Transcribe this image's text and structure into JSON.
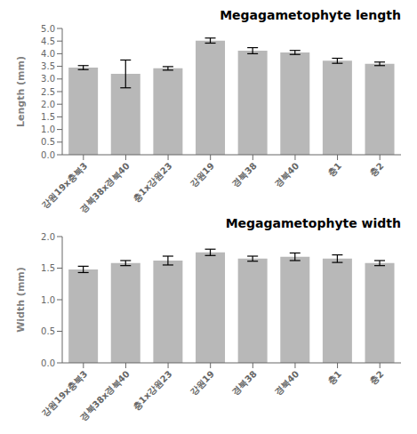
{
  "chart_data": [
    {
      "type": "bar",
      "title": "Megagametophyte length",
      "ylabel": "Length (mm)",
      "categories": [
        "강원19x충북3",
        "경북38x경북40",
        "충1x강원23",
        "강원19",
        "경북38",
        "경북40",
        "충1",
        "충2"
      ],
      "values": [
        3.45,
        3.2,
        3.42,
        4.52,
        4.12,
        4.05,
        3.72,
        3.6
      ],
      "errors": [
        0.08,
        0.55,
        0.07,
        0.1,
        0.12,
        0.08,
        0.1,
        0.07
      ],
      "color": "#b8b8b8",
      "ylim": [
        0,
        5
      ],
      "yticks": [
        {
          "value": 0,
          "label": "0.0"
        },
        0.5,
        {
          "value": 1,
          "label": "1.0"
        },
        1.5,
        {
          "value": 2,
          "label": "2.0"
        },
        2.5,
        {
          "value": 3,
          "label": "3.0"
        },
        3.5,
        {
          "value": 4,
          "label": "4.0"
        },
        4.5,
        {
          "value": 5,
          "label": "5.0"
        }
      ],
      "grid": false
    },
    {
      "type": "bar",
      "title": "Megagametophyte width",
      "ylabel": "Width (mm)",
      "categories": [
        "강원19x충북3",
        "경북38x경북40",
        "충1x강원23",
        "강원19",
        "경북38",
        "경북40",
        "충1",
        "충2"
      ],
      "values": [
        1.48,
        1.58,
        1.62,
        1.75,
        1.65,
        1.68,
        1.65,
        1.58
      ],
      "errors": [
        0.05,
        0.04,
        0.07,
        0.05,
        0.04,
        0.06,
        0.06,
        0.04
      ],
      "color": "#b8b8b8",
      "ylim": [
        0,
        2
      ],
      "yticks": [
        {
          "value": 0,
          "label": "0.0"
        },
        0.5,
        {
          "value": 1,
          "label": "1.0"
        },
        1.5,
        {
          "value": 2,
          "label": "2.0"
        }
      ],
      "grid": false
    }
  ]
}
